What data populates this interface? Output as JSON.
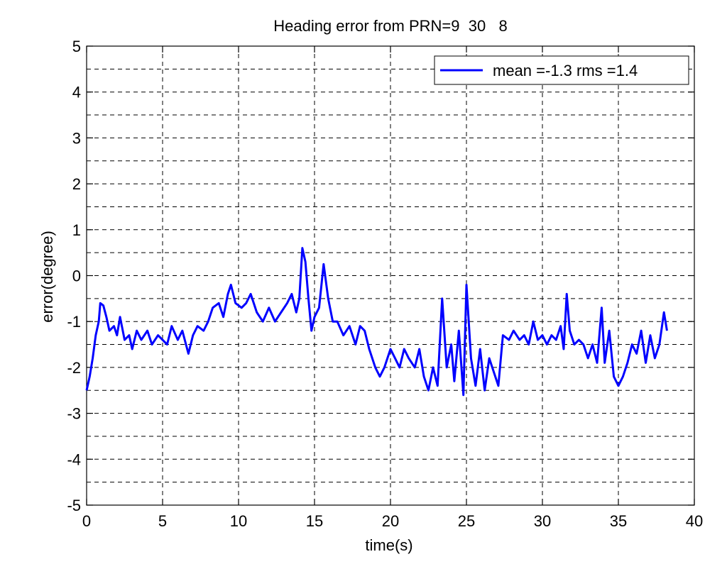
{
  "chart_data": {
    "type": "line",
    "title": "Heading error from PRN=9  30   8",
    "xlabel": "time(s)",
    "ylabel": "error(degree)",
    "xlim": [
      0,
      40
    ],
    "xticks": [
      0,
      5,
      10,
      15,
      20,
      25,
      30,
      35,
      40
    ],
    "ylim": [
      -5,
      5
    ],
    "yticks": [
      -5,
      -4,
      -3,
      -2,
      -1,
      0,
      1,
      2,
      3,
      4,
      5
    ],
    "yminorgrid": [
      -4.5,
      -3.5,
      -2.5,
      -1.5,
      -0.5,
      0.5,
      1.5,
      2.5,
      3.5,
      4.5
    ],
    "grid": true,
    "legend_position": "upper-right",
    "x": [
      0,
      0.2,
      0.4,
      0.6,
      0.8,
      0.9,
      1.1,
      1.3,
      1.5,
      1.8,
      2.0,
      2.2,
      2.5,
      2.8,
      3.0,
      3.3,
      3.6,
      4.0,
      4.3,
      4.7,
      5.0,
      5.3,
      5.6,
      6.0,
      6.3,
      6.7,
      7.0,
      7.3,
      7.7,
      8.0,
      8.3,
      8.7,
      9.0,
      9.3,
      9.5,
      9.8,
      10.2,
      10.5,
      10.8,
      11.2,
      11.6,
      12.0,
      12.4,
      12.8,
      13.2,
      13.5,
      13.8,
      14.0,
      14.2,
      14.4,
      14.6,
      14.8,
      15.0,
      15.3,
      15.6,
      15.9,
      16.2,
      16.5,
      16.9,
      17.3,
      17.7,
      18.0,
      18.3,
      18.6,
      19.0,
      19.3,
      19.6,
      20.0,
      20.3,
      20.6,
      20.9,
      21.2,
      21.6,
      21.9,
      22.2,
      22.5,
      22.8,
      23.1,
      23.4,
      23.7,
      24.0,
      24.2,
      24.5,
      24.8,
      25.0,
      25.3,
      25.6,
      25.9,
      26.2,
      26.5,
      26.8,
      27.1,
      27.4,
      27.8,
      28.1,
      28.5,
      28.8,
      29.1,
      29.4,
      29.7,
      30.0,
      30.3,
      30.6,
      30.9,
      31.2,
      31.4,
      31.6,
      31.8,
      32.1,
      32.4,
      32.7,
      33.0,
      33.3,
      33.6,
      33.9,
      34.1,
      34.4,
      34.7,
      35.0,
      35.3,
      35.6,
      35.9,
      36.2,
      36.5,
      36.8,
      37.1,
      37.4,
      37.7,
      38.0,
      38.2
    ],
    "series": [
      {
        "name": "mean =-1.3 rms =1.4",
        "color": "#0000ff",
        "values": [
          -2.5,
          -2.2,
          -1.8,
          -1.3,
          -1.0,
          -0.6,
          -0.65,
          -0.9,
          -1.2,
          -1.1,
          -1.3,
          -0.9,
          -1.4,
          -1.3,
          -1.6,
          -1.2,
          -1.4,
          -1.2,
          -1.5,
          -1.3,
          -1.4,
          -1.5,
          -1.1,
          -1.4,
          -1.2,
          -1.7,
          -1.3,
          -1.1,
          -1.2,
          -1.0,
          -0.7,
          -0.6,
          -0.9,
          -0.4,
          -0.2,
          -0.6,
          -0.7,
          -0.6,
          -0.4,
          -0.8,
          -1.0,
          -0.7,
          -1.0,
          -0.8,
          -0.6,
          -0.4,
          -0.8,
          -0.5,
          0.6,
          0.3,
          -0.5,
          -1.2,
          -0.9,
          -0.7,
          0.25,
          -0.5,
          -1.0,
          -1.0,
          -1.3,
          -1.1,
          -1.5,
          -1.1,
          -1.2,
          -1.6,
          -2.0,
          -2.2,
          -2.0,
          -1.6,
          -1.8,
          -2.0,
          -1.6,
          -1.8,
          -2.0,
          -1.6,
          -2.2,
          -2.5,
          -2.0,
          -2.4,
          -0.5,
          -2.0,
          -1.5,
          -2.3,
          -1.2,
          -2.6,
          -0.2,
          -1.8,
          -2.4,
          -1.6,
          -2.5,
          -1.8,
          -2.1,
          -2.4,
          -1.3,
          -1.4,
          -1.2,
          -1.4,
          -1.3,
          -1.5,
          -1.0,
          -1.4,
          -1.3,
          -1.5,
          -1.3,
          -1.4,
          -1.1,
          -1.6,
          -0.4,
          -1.2,
          -1.5,
          -1.4,
          -1.5,
          -1.8,
          -1.5,
          -1.9,
          -0.7,
          -1.9,
          -1.2,
          -2.2,
          -2.4,
          -2.2,
          -1.9,
          -1.5,
          -1.7,
          -1.2,
          -1.9,
          -1.3,
          -1.8,
          -1.5,
          -0.8,
          -1.2
        ]
      }
    ]
  }
}
